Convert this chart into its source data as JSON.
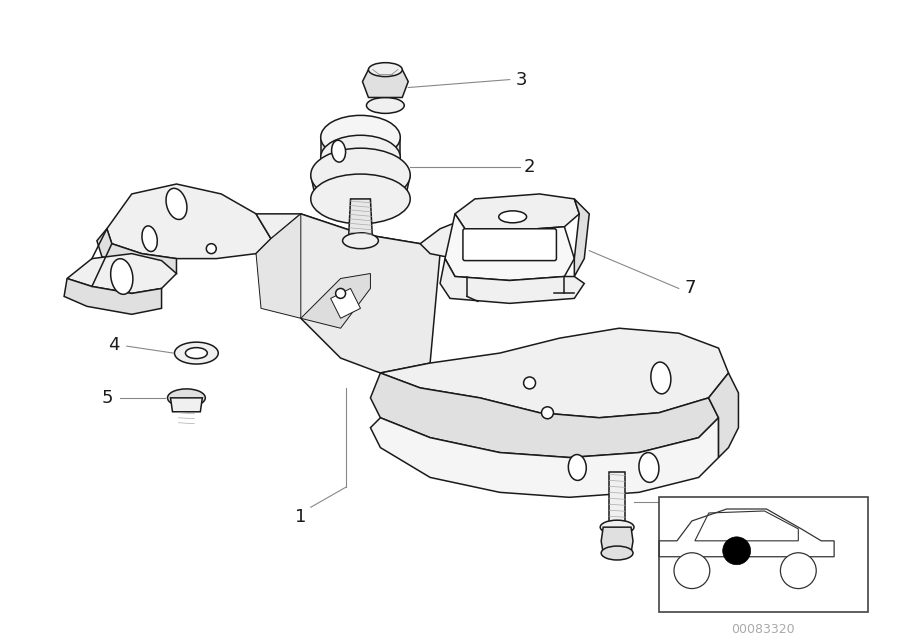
{
  "background_color": "#ffffff",
  "line_color": "#1a1a1a",
  "fill_light": "#f0f0f0",
  "fill_mid": "#e0e0e0",
  "fill_dark": "#c8c8c8",
  "label_color": "#1a1a1a",
  "leader_color": "#888888",
  "code_color": "#aaaaaa",
  "diagram_code": "00083320",
  "lw": 1.1
}
